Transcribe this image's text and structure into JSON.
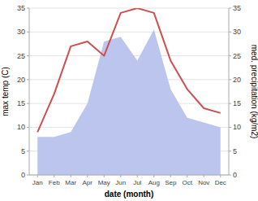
{
  "chart_data": {
    "type": "line",
    "xlabel": "date (month)",
    "ylabel": "max temp (C)",
    "y2label": "med. precipitation (kg/m2)",
    "categories": [
      "Jan",
      "Feb",
      "Mar",
      "Apr",
      "May",
      "Jun",
      "Jul",
      "Aug",
      "Sep",
      "Oct",
      "Nov",
      "Dec"
    ],
    "series": [
      {
        "type": "area",
        "color": "#bbc5ee",
        "values": [
          8,
          8,
          9,
          15,
          28,
          29,
          24,
          30.5,
          18,
          12,
          11,
          10
        ]
      },
      {
        "type": "line",
        "color": "#cd4f4f",
        "axis": "y2",
        "values": [
          9,
          17,
          27,
          28,
          25,
          34,
          35,
          34,
          24,
          18,
          14,
          13
        ]
      }
    ],
    "ylim": [
      0,
      35
    ],
    "yticks": [
      0,
      5,
      10,
      15,
      20,
      25,
      30,
      35
    ],
    "y2lim": [
      0,
      35
    ],
    "y2ticks": [
      0,
      5,
      10,
      15,
      20,
      25,
      30,
      35
    ],
    "grid": true
  }
}
